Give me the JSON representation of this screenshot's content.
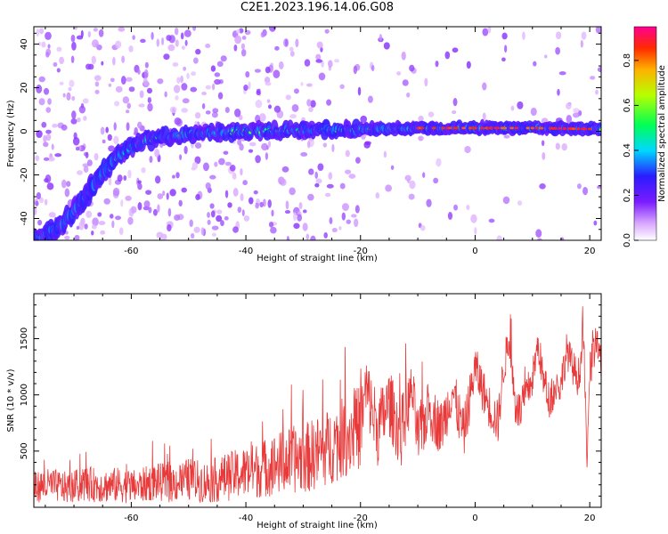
{
  "title": "C2E1.2023.196.14.06.G08",
  "chart_data": [
    {
      "type": "heatmap",
      "xlabel": "Height of straight line (km)",
      "ylabel": "Frequency (Hz)",
      "xlim": [
        -77,
        22
      ],
      "ylim": [
        -50,
        48
      ],
      "xticks": [
        -60,
        -40,
        -20,
        0,
        20
      ],
      "yticks": [
        -40,
        -20,
        0,
        20,
        40
      ],
      "colorbar": {
        "label": "Normalized spectral amplitude",
        "range": [
          0,
          0.95
        ],
        "ticks": [
          0.0,
          0.2,
          0.4,
          0.6,
          0.8
        ]
      },
      "ridge": [
        {
          "x": -75,
          "y": -48
        },
        {
          "x": -72,
          "y": -42
        },
        {
          "x": -69,
          "y": -33
        },
        {
          "x": -66,
          "y": -22
        },
        {
          "x": -63,
          "y": -13
        },
        {
          "x": -60,
          "y": -7
        },
        {
          "x": -56,
          "y": -3
        },
        {
          "x": -50,
          "y": -1
        },
        {
          "x": -40,
          "y": 0
        },
        {
          "x": -30,
          "y": 0.5
        },
        {
          "x": -20,
          "y": 1
        },
        {
          "x": -10,
          "y": 1.5
        },
        {
          "x": 0,
          "y": 1.5
        },
        {
          "x": 10,
          "y": 1.5
        },
        {
          "x": 22,
          "y": 1
        }
      ],
      "grid": false
    },
    {
      "type": "line",
      "xlabel": "Height of straight line (km)",
      "ylabel": "SNR (10 * v/v)",
      "xlim": [
        -77,
        22
      ],
      "ylim": [
        0,
        1900
      ],
      "xticks": [
        -60,
        -40,
        -20,
        0,
        20
      ],
      "yticks": [
        500,
        1000,
        1500
      ],
      "series": [
        {
          "color": "#e83a3a",
          "x": [
            -77,
            -74,
            -71,
            -68,
            -65,
            -62,
            -59,
            -56,
            -53,
            -50,
            -47,
            -44,
            -41,
            -38,
            -35,
            -32,
            -29,
            -26,
            -23,
            -20,
            -19,
            -17,
            -15,
            -13,
            -11,
            -10,
            -8,
            -6,
            -5,
            -4,
            -2,
            0,
            2,
            4,
            5,
            6,
            7,
            8,
            9,
            10,
            11,
            12,
            13,
            14,
            15,
            16,
            17,
            18,
            19,
            19.5,
            20,
            21,
            22
          ],
          "values": [
            180,
            200,
            170,
            210,
            190,
            200,
            180,
            230,
            210,
            250,
            220,
            260,
            300,
            330,
            380,
            420,
            450,
            520,
            620,
            720,
            1050,
            690,
            930,
            650,
            1050,
            610,
            880,
            700,
            850,
            1050,
            650,
            1250,
            950,
            750,
            1250,
            1500,
            900,
            850,
            1000,
            1150,
            1450,
            1100,
            950,
            1050,
            1100,
            1400,
            1250,
            1150,
            1500,
            300,
            1200,
            1450,
            1300
          ],
          "noise": [
            140,
            150,
            140,
            160,
            150,
            160,
            150,
            170,
            170,
            190,
            190,
            210,
            230,
            250,
            280,
            300,
            320,
            340,
            360,
            380,
            300,
            330,
            300,
            320,
            240,
            280,
            260,
            240,
            240,
            230,
            230,
            200,
            200,
            200,
            180,
            170,
            180,
            180,
            170,
            170,
            160,
            170,
            160,
            160,
            170,
            160,
            160,
            170,
            160,
            120,
            170,
            160,
            160
          ]
        }
      ],
      "grid": false
    }
  ]
}
